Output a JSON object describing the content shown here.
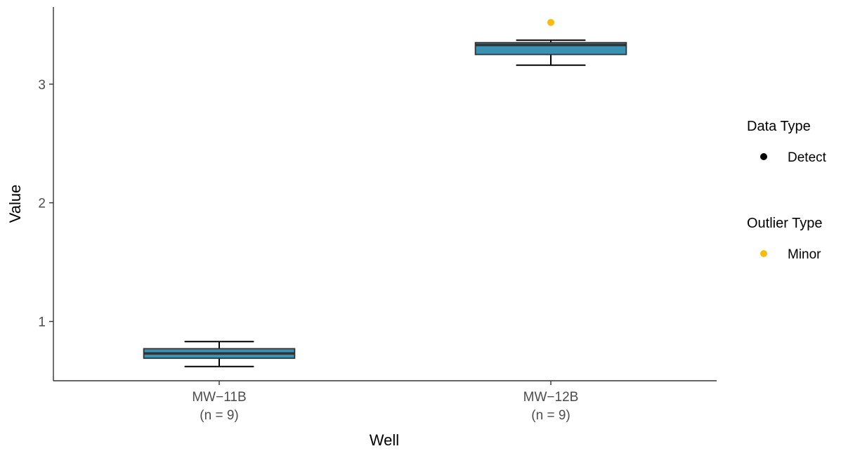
{
  "chart_data": {
    "type": "box",
    "xlabel": "Well",
    "ylabel": "Value",
    "ylim": [
      0.5,
      3.65
    ],
    "yticks": [
      1,
      2,
      3
    ],
    "categories": [
      {
        "name": "MW−11B",
        "n_label": "(n = 9)"
      },
      {
        "name": "MW−12B",
        "n_label": "(n = 9)"
      }
    ],
    "boxes": [
      {
        "category": "MW−11B",
        "whisker_low": 0.62,
        "q1": 0.69,
        "median": 0.73,
        "q3": 0.77,
        "whisker_high": 0.83,
        "outliers": []
      },
      {
        "category": "MW−12B",
        "whisker_low": 3.16,
        "q1": 3.25,
        "median": 3.33,
        "q3": 3.35,
        "whisker_high": 3.37,
        "outliers": [
          3.52
        ]
      }
    ],
    "colors": {
      "box_fill": "#3a92b3",
      "box_stroke": "#333333",
      "median": "#333333",
      "detect_point": "#000000",
      "minor_outlier": "#f5bd0b"
    },
    "legend": {
      "position": "right",
      "groups": [
        {
          "title": "Data Type",
          "entries": [
            {
              "label": "Detect",
              "color": "#000000"
            }
          ]
        },
        {
          "title": "Outlier Type",
          "entries": [
            {
              "label": "Minor",
              "color": "#f5bd0b"
            }
          ]
        }
      ]
    }
  }
}
